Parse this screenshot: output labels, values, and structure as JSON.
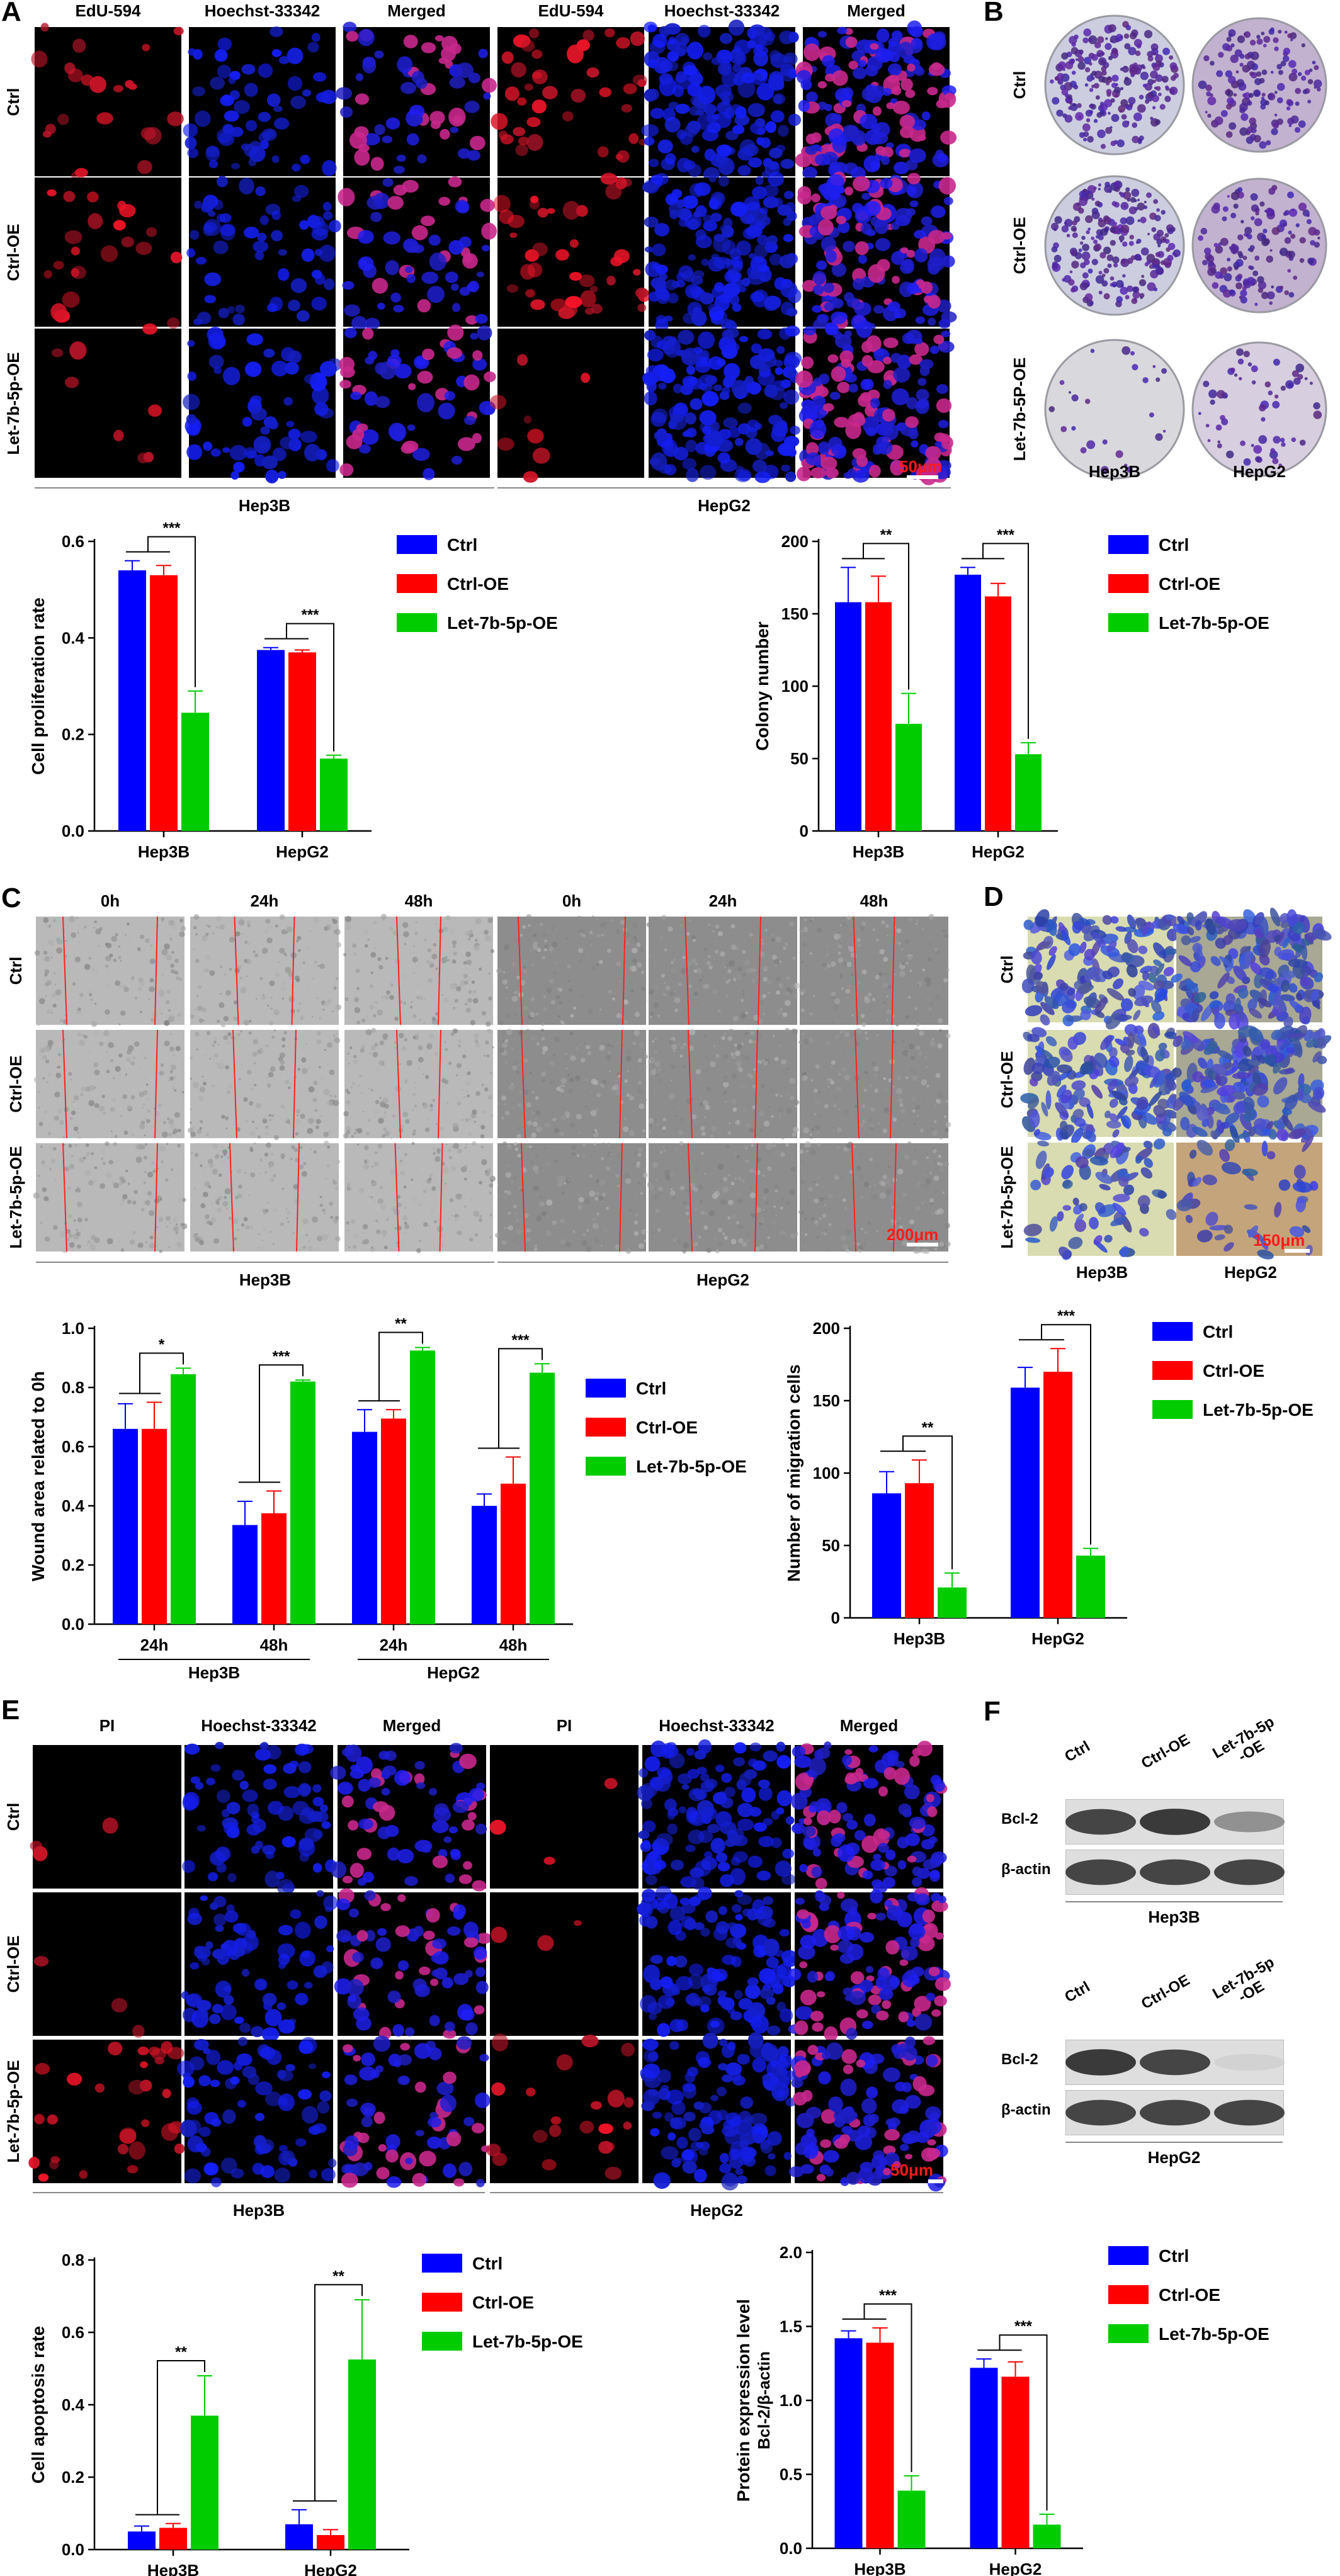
{
  "colors": {
    "ctrl": "#0000ff",
    "ctrl_oe": "#ff0000",
    "let7b": "#00cc00",
    "scale": "#ff1a1a"
  },
  "panels": {
    "A": {
      "letter": "A",
      "columns": [
        "EdU-594",
        "Hoechst-33342",
        "Merged",
        "EdU-594",
        "Hoechst-33342",
        "Merged"
      ],
      "rows": [
        "Ctrl",
        "Ctrl-OE",
        "Let-7b-5p-OE"
      ],
      "groups": [
        "Hep3B",
        "HepG2"
      ],
      "scale": "50μm"
    },
    "B": {
      "letter": "B",
      "rows": [
        "Ctrl",
        "Ctrl-OE",
        "Let-7b-5P-OE"
      ],
      "groups": [
        "Hep3B",
        "HepG2"
      ]
    },
    "C": {
      "letter": "C",
      "columns": [
        "0h",
        "24h",
        "48h",
        "0h",
        "24h",
        "48h"
      ],
      "rows": [
        "Ctrl",
        "Ctrl-OE",
        "Let-7b-5p-OE"
      ],
      "groups": [
        "Hep3B",
        "HepG2"
      ],
      "scale": "200μm"
    },
    "D": {
      "letter": "D",
      "rows": [
        "Ctrl",
        "Ctrl-OE",
        "Let-7b-5p-OE"
      ],
      "groups": [
        "Hep3B",
        "HepG2"
      ],
      "scale": "150μm"
    },
    "E": {
      "letter": "E",
      "columns": [
        "PI",
        "Hoechst-33342",
        "Merged",
        "PI",
        "Hoechst-33342",
        "Merged"
      ],
      "rows": [
        "Ctrl",
        "Ctrl-OE",
        "Let-7b-5p-OE"
      ],
      "groups": [
        "Hep3B",
        "HepG2"
      ],
      "scale": "50μm"
    },
    "F": {
      "letter": "F",
      "lanes_top": [
        "Ctrl",
        "Ctrl-OE",
        "Let-7b-5p\n-OE"
      ],
      "lanes_bottom": [
        "Ctrl",
        "Ctrl-OE",
        "Let-7b-5p\n-OE"
      ],
      "rows": [
        "Bcl-2",
        "β-actin"
      ],
      "groups": [
        "Hep3B",
        "HepG2"
      ],
      "band_intensity_top": {
        "Bcl-2": [
          0.85,
          0.9,
          0.5
        ],
        "β-actin": [
          0.85,
          0.85,
          0.85
        ]
      },
      "band_intensity_bottom": {
        "Bcl-2": [
          0.9,
          0.85,
          0.2
        ],
        "β-actin": [
          0.85,
          0.85,
          0.85
        ]
      }
    }
  },
  "chart_data": [
    {
      "id": "edu",
      "type": "bar",
      "categories": [
        "Hep3B",
        "HepG2"
      ],
      "series": [
        {
          "name": "Ctrl",
          "values": [
            0.54,
            0.375
          ],
          "errors": [
            0.02,
            0.005
          ]
        },
        {
          "name": "Ctrl-OE",
          "values": [
            0.53,
            0.37
          ],
          "errors": [
            0.02,
            0.005
          ]
        },
        {
          "name": "Let-7b-5p-OE",
          "values": [
            0.245,
            0.15
          ],
          "errors": [
            0.045,
            0.007
          ]
        }
      ],
      "ylabel": "Cell proliferation rate",
      "ylim": [
        0,
        0.6
      ],
      "yticks": [
        0.0,
        0.2,
        0.4,
        0.6
      ],
      "yticklabels": [
        "0.0",
        "0.2",
        "0.4",
        "0.6"
      ],
      "legend": "right",
      "significance": [
        "***",
        "***"
      ]
    },
    {
      "id": "colony",
      "type": "bar",
      "categories": [
        "Hep3B",
        "HepG2"
      ],
      "series": [
        {
          "name": "Ctrl",
          "values": [
            158,
            177
          ],
          "errors": [
            24,
            5
          ]
        },
        {
          "name": "Ctrl-OE",
          "values": [
            158,
            162
          ],
          "errors": [
            18,
            9
          ]
        },
        {
          "name": "Let-7b-5p-OE",
          "values": [
            74,
            53
          ],
          "errors": [
            21,
            8
          ]
        }
      ],
      "ylabel": "Colony number",
      "ylim": [
        0,
        200
      ],
      "yticks": [
        0,
        50,
        100,
        150,
        200
      ],
      "yticklabels": [
        "0",
        "50",
        "100",
        "150",
        "200"
      ],
      "legend": "right",
      "significance": [
        "**",
        "***"
      ]
    },
    {
      "id": "wound",
      "type": "bar",
      "categories": [
        "24h",
        "48h",
        "24h",
        "48h"
      ],
      "category_groups": [
        {
          "label": "Hep3B",
          "span": [
            0,
            1
          ]
        },
        {
          "label": "HepG2",
          "span": [
            2,
            3
          ]
        }
      ],
      "series": [
        {
          "name": "Ctrl",
          "values": [
            0.66,
            0.335,
            0.65,
            0.4
          ],
          "errors": [
            0.085,
            0.08,
            0.075,
            0.04
          ]
        },
        {
          "name": "Ctrl-OE",
          "values": [
            0.66,
            0.375,
            0.695,
            0.475
          ],
          "errors": [
            0.09,
            0.075,
            0.03,
            0.09
          ]
        },
        {
          "name": "Let-7b-5p-OE",
          "values": [
            0.845,
            0.82,
            0.925,
            0.85
          ],
          "errors": [
            0.02,
            0.005,
            0.01,
            0.03
          ]
        }
      ],
      "ylabel": "Wound area related to 0h",
      "ylim": [
        0,
        1.0
      ],
      "yticks": [
        0.0,
        0.2,
        0.4,
        0.6,
        0.8,
        1.0
      ],
      "yticklabels": [
        "0.0",
        "0.2",
        "0.4",
        "0.6",
        "0.8",
        "1.0"
      ],
      "legend": "right",
      "significance": [
        "*",
        "***",
        "**",
        "***"
      ]
    },
    {
      "id": "migration",
      "type": "bar",
      "categories": [
        "Hep3B",
        "HepG2"
      ],
      "series": [
        {
          "name": "Ctrl",
          "values": [
            86,
            159
          ],
          "errors": [
            15,
            14
          ]
        },
        {
          "name": "Ctrl-OE",
          "values": [
            93,
            170
          ],
          "errors": [
            16,
            16
          ]
        },
        {
          "name": "Let-7b-5p-OE",
          "values": [
            21,
            43
          ],
          "errors": [
            10,
            5
          ]
        }
      ],
      "ylabel": "Number of migration cells",
      "ylim": [
        0,
        200
      ],
      "yticks": [
        0,
        50,
        100,
        150,
        200
      ],
      "yticklabels": [
        "0",
        "50",
        "100",
        "150",
        "200"
      ],
      "legend": "top-right",
      "significance": [
        "**",
        "***"
      ]
    },
    {
      "id": "apoptosis",
      "type": "bar",
      "categories": [
        "Hep3B",
        "HepG2"
      ],
      "series": [
        {
          "name": "Ctrl",
          "values": [
            0.05,
            0.07
          ],
          "errors": [
            0.015,
            0.04
          ]
        },
        {
          "name": "Ctrl-OE",
          "values": [
            0.06,
            0.04
          ],
          "errors": [
            0.012,
            0.015
          ]
        },
        {
          "name": "Let-7b-5p-OE",
          "values": [
            0.37,
            0.525
          ],
          "errors": [
            0.11,
            0.165
          ]
        }
      ],
      "ylabel": "Cell apoptosis rate",
      "ylim": [
        0,
        0.8
      ],
      "yticks": [
        0.0,
        0.2,
        0.4,
        0.6,
        0.8
      ],
      "yticklabels": [
        "0.0",
        "0.2",
        "0.4",
        "0.6",
        "0.8"
      ],
      "legend": "right",
      "significance": [
        "**",
        "**"
      ]
    },
    {
      "id": "protein",
      "type": "bar",
      "categories": [
        "Hep3B",
        "HepG2"
      ],
      "series": [
        {
          "name": "Ctrl",
          "values": [
            1.42,
            1.22
          ],
          "errors": [
            0.05,
            0.06
          ]
        },
        {
          "name": "Ctrl-OE",
          "values": [
            1.39,
            1.16
          ],
          "errors": [
            0.1,
            0.1
          ]
        },
        {
          "name": "Let-7b-5p-OE",
          "values": [
            0.39,
            0.16
          ],
          "errors": [
            0.1,
            0.07
          ]
        }
      ],
      "ylabel": "Protein expression level",
      "ylabel2": "Bcl-2/β-actin",
      "ylim": [
        0,
        2.0
      ],
      "yticks": [
        0.0,
        0.5,
        1.0,
        1.5,
        2.0
      ],
      "yticklabels": [
        "0.0",
        "0.5",
        "1.0",
        "1.5",
        "2.0"
      ],
      "legend": "right",
      "significance": [
        "***",
        "***"
      ]
    }
  ]
}
